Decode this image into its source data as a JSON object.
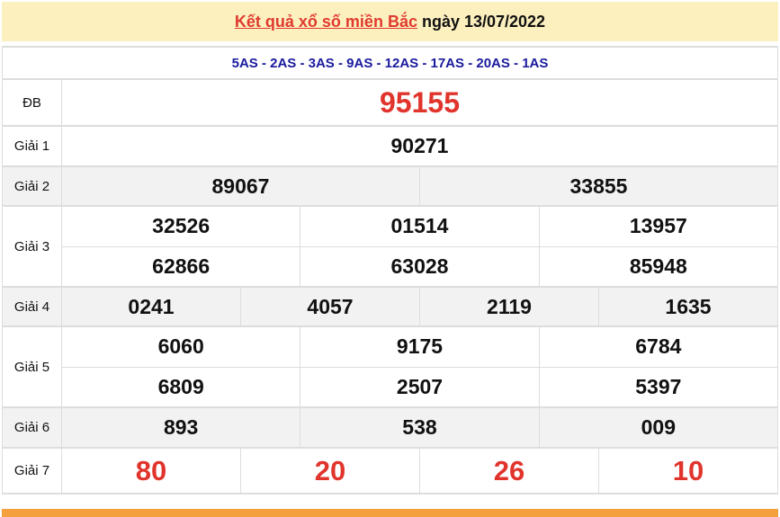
{
  "header": {
    "link": "Kết quả xổ số miền Bắc",
    "date_text": " ngày 13/07/2022"
  },
  "codes": "5AS - 2AS - 3AS - 9AS - 12AS - 17AS - 20AS - 1AS",
  "prizes": [
    {
      "label": "ĐB",
      "rows": [
        [
          "95155"
        ]
      ]
    },
    {
      "label": "Giải 1",
      "rows": [
        [
          "90271"
        ]
      ]
    },
    {
      "label": "Giải 2",
      "rows": [
        [
          "89067",
          "33855"
        ]
      ]
    },
    {
      "label": "Giải 3",
      "rows": [
        [
          "32526",
          "01514",
          "13957"
        ],
        [
          "62866",
          "63028",
          "85948"
        ]
      ]
    },
    {
      "label": "Giải 4",
      "rows": [
        [
          "0241",
          "4057",
          "2119",
          "1635"
        ]
      ]
    },
    {
      "label": "Giải 5",
      "rows": [
        [
          "6060",
          "9175",
          "6784"
        ],
        [
          "6809",
          "2507",
          "5397"
        ]
      ]
    },
    {
      "label": "Giải 6",
      "rows": [
        [
          "893",
          "538",
          "009"
        ]
      ]
    },
    {
      "label": "Giải 7",
      "rows": [
        [
          "80",
          "20",
          "26",
          "10"
        ]
      ]
    }
  ],
  "colors": {
    "accent": "#e0342c",
    "codes": "#1a1a9e",
    "header_bg": "#fcf0bf",
    "footer_bar": "#f4a03c"
  }
}
